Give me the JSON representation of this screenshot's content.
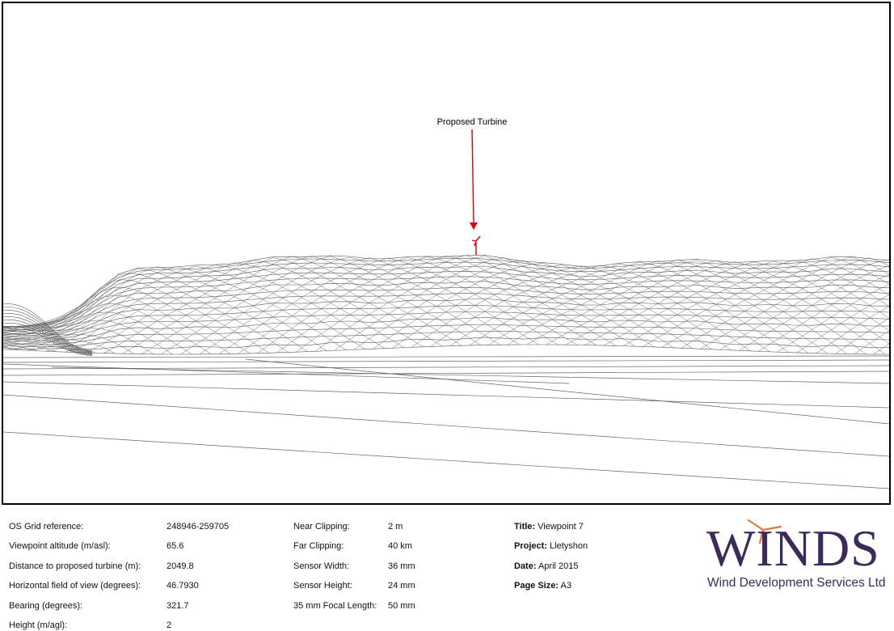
{
  "annotation": {
    "label": "Proposed Turbine",
    "arrow_color": "#e00000",
    "turbine_color": "#d40000"
  },
  "info": {
    "col1": [
      {
        "label": "OS Grid reference:",
        "value": "248946-259705"
      },
      {
        "label": "Viewpoint altitude (m/asl):",
        "value": "65.6"
      },
      {
        "label": "Distance to proposed turbine (m):",
        "value": "2049.8"
      },
      {
        "label": "Horizontal field of view (degrees):",
        "value": "46.7930"
      },
      {
        "label": "Bearing (degrees):",
        "value": "321.7"
      },
      {
        "label": "Height  (m/agl):",
        "value": "2"
      }
    ],
    "col2": [
      {
        "label": "Near Clipping:",
        "value": "2 m"
      },
      {
        "label": "Far Clipping:",
        "value": "40 km"
      },
      {
        "label": "Sensor Width:",
        "value": "36 mm"
      },
      {
        "label": "Sensor Height:",
        "value": "24 mm"
      },
      {
        "label": "35 mm Focal Length:",
        "value": "50 mm"
      }
    ],
    "col3": [
      {
        "label": "Title:",
        "value": "Viewpoint 7"
      },
      {
        "label": "Project:",
        "value": "Lletyshon"
      },
      {
        "label": "Date:",
        "value": "April 2015"
      },
      {
        "label": "Page Size:",
        "value": "A3"
      }
    ]
  },
  "logo": {
    "wordmark": "WINDS",
    "subtitle": "Wind Development Services Ltd",
    "primary_color": "#3c2a5c",
    "accent_color": "#e07a3c"
  }
}
